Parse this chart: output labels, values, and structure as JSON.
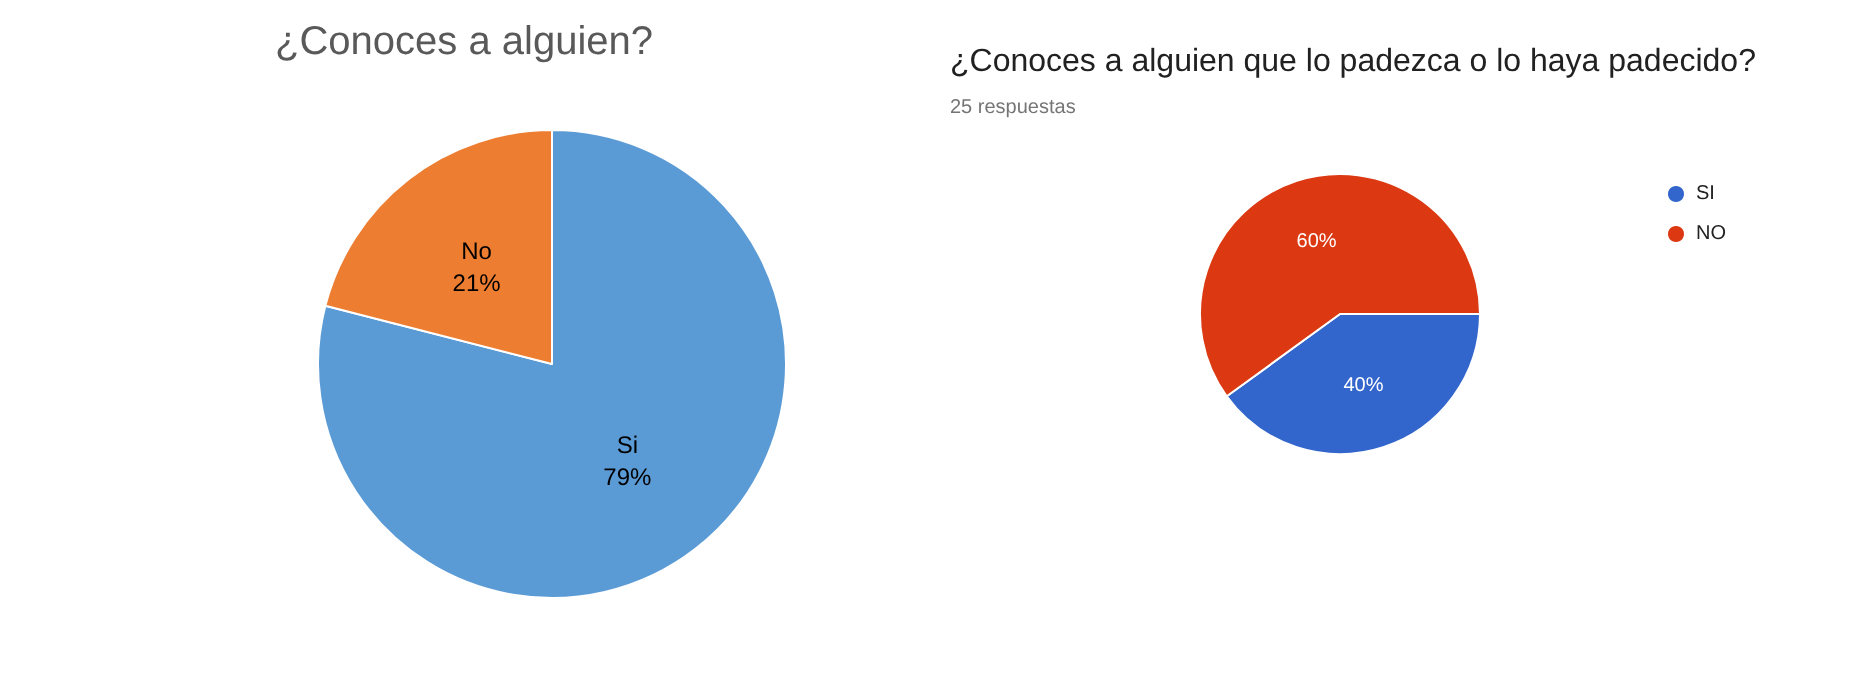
{
  "chart_data": [
    {
      "type": "pie",
      "title": "¿Conoces a alguien?",
      "categories": [
        "Si",
        "No"
      ],
      "values": [
        79,
        21
      ],
      "colors": [
        "#5b9bd5",
        "#ed7d31"
      ],
      "value_labels": [
        "79%",
        "21%"
      ],
      "legend": false
    },
    {
      "type": "pie",
      "title": "¿Conoces a alguien que lo padezca o lo haya padecido?",
      "subtitle": "25 respuestas",
      "categories": [
        "SI",
        "NO"
      ],
      "values": [
        40,
        60
      ],
      "colors": [
        "#3366cc",
        "#dc3912"
      ],
      "value_labels": [
        "40%",
        "60%"
      ],
      "legend": "top right"
    }
  ]
}
